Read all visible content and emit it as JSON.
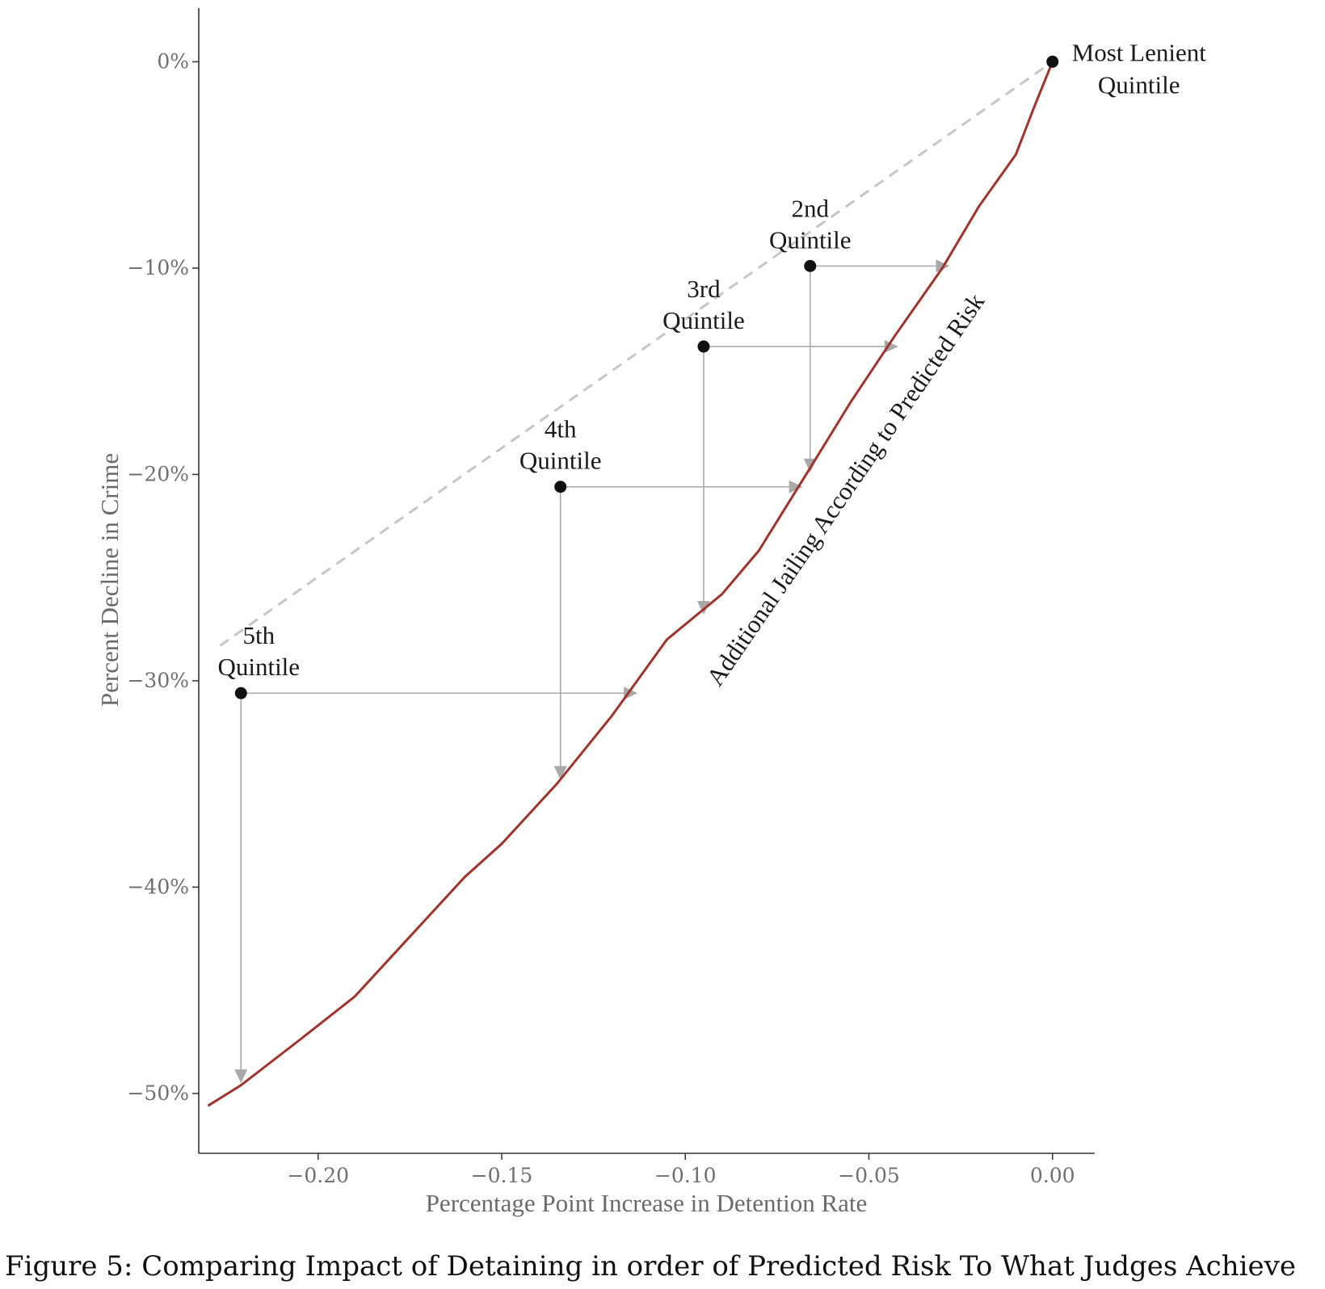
{
  "caption": "Figure 5: Comparing Impact of Detaining in order of Predicted Risk To What Judges Achieve",
  "chart_data": {
    "type": "line",
    "xlabel": "Percentage Point Increase in Detention Rate",
    "ylabel": "Percent Decline in Crime",
    "xlim": [
      -0.2325,
      0.0115
    ],
    "ylim": [
      -52.9,
      2.6
    ],
    "x_ticks": [
      {
        "value": -0.2,
        "label": "−0.20"
      },
      {
        "value": -0.15,
        "label": "−0.15"
      },
      {
        "value": -0.1,
        "label": "−0.10"
      },
      {
        "value": -0.05,
        "label": "−0.05"
      },
      {
        "value": 0.0,
        "label": "0.00"
      }
    ],
    "y_ticks": [
      {
        "value": 0,
        "label": "0%"
      },
      {
        "value": -10,
        "label": "−10%"
      },
      {
        "value": -20,
        "label": "−20%"
      },
      {
        "value": -30,
        "label": "−30%"
      },
      {
        "value": -40,
        "label": "−40%"
      },
      {
        "value": -50,
        "label": "−50%"
      }
    ],
    "grid": false,
    "colors": {
      "curve": "#a0332c",
      "point": "#111111",
      "arrow": "#a9a9a9",
      "dashed": "#c6c6c6"
    },
    "curve": {
      "label": "Additional Jailing According to Predicted Risk",
      "points": [
        [
          -0.23,
          -50.6
        ],
        [
          -0.221,
          -49.6
        ],
        [
          -0.205,
          -47.4
        ],
        [
          -0.19,
          -45.3
        ],
        [
          -0.175,
          -42.4
        ],
        [
          -0.16,
          -39.5
        ],
        [
          -0.15,
          -37.9
        ],
        [
          -0.135,
          -35.0
        ],
        [
          -0.12,
          -31.7
        ],
        [
          -0.105,
          -28.0
        ],
        [
          -0.09,
          -25.8
        ],
        [
          -0.08,
          -23.7
        ],
        [
          -0.065,
          -19.4
        ],
        [
          -0.055,
          -16.5
        ],
        [
          -0.043,
          -13.3
        ],
        [
          -0.03,
          -10.0
        ],
        [
          -0.02,
          -7.0
        ],
        [
          -0.01,
          -4.5
        ],
        [
          -0.005,
          -2.2
        ],
        [
          0.0,
          0.0
        ]
      ]
    },
    "quintiles": [
      {
        "name": "Most Lenient",
        "label": [
          "Most Lenient",
          "Quintile"
        ],
        "x": 0.0,
        "y": 0.0,
        "label_pos": "right"
      },
      {
        "name": "2nd",
        "label": [
          "2nd",
          "Quintile"
        ],
        "x": -0.066,
        "y": -9.9,
        "proj_x": -0.028,
        "proj_y": -19.9,
        "label_pos": "above"
      },
      {
        "name": "3rd",
        "label": [
          "3rd",
          "Quintile"
        ],
        "x": -0.095,
        "y": -13.8,
        "proj_x": -0.042,
        "proj_y": -26.8,
        "label_pos": "above"
      },
      {
        "name": "4th",
        "label": [
          "4th",
          "Quintile"
        ],
        "x": -0.134,
        "y": -20.6,
        "proj_x": -0.068,
        "proj_y": -34.8,
        "label_pos": "above"
      },
      {
        "name": "5th",
        "label": [
          "5th",
          "Quintile"
        ],
        "x": -0.221,
        "y": -30.6,
        "proj_x": -0.113,
        "proj_y": -49.5,
        "label_pos": "above"
      }
    ]
  }
}
